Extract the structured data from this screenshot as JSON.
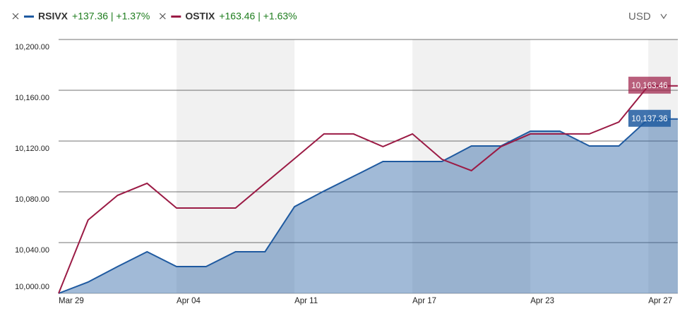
{
  "chart_data": {
    "type": "line",
    "currency": "USD",
    "categories": [
      "Mar 29",
      null,
      null,
      null,
      "Apr 04",
      null,
      null,
      null,
      "Apr 11",
      null,
      null,
      null,
      "Apr 17",
      null,
      null,
      null,
      "Apr 23",
      null,
      null,
      null,
      "Apr 27",
      null
    ],
    "series": [
      {
        "name": "RSIVX",
        "summary": "+137.36 | +1.37%",
        "color": "#1f5aa0",
        "fill": true,
        "values": [
          10000,
          10008.9,
          10021.1,
          10032.8,
          10021.1,
          10021.1,
          10032.8,
          10032.8,
          10068.3,
          10080.6,
          10092.2,
          10103.9,
          10103.9,
          10103.9,
          10116.1,
          10116.1,
          10127.8,
          10127.8,
          10116.1,
          10116.1,
          10137.36,
          10137.36
        ],
        "value_labels": [
          null,
          null,
          null,
          null,
          null,
          null,
          null,
          null,
          null,
          null,
          null,
          null,
          null,
          null,
          null,
          null,
          null,
          null,
          null,
          null,
          null,
          "10,137.36"
        ]
      },
      {
        "name": "OSTIX",
        "summary": "+163.46 | +1.63%",
        "color": "#9b1b45",
        "fill": false,
        "values": [
          10000,
          10057.8,
          10077.2,
          10086.7,
          10067.2,
          10067.2,
          10067.2,
          10086.7,
          10106.1,
          10125.6,
          10125.6,
          10115.6,
          10125.6,
          10105.6,
          10096.7,
          10115.6,
          10125.6,
          10125.6,
          10125.6,
          10135,
          10163.46,
          10163.46
        ],
        "value_labels": [
          null,
          null,
          null,
          null,
          null,
          null,
          null,
          null,
          null,
          null,
          null,
          null,
          null,
          null,
          null,
          null,
          null,
          null,
          null,
          null,
          null,
          "10,163.46"
        ]
      }
    ],
    "ylim": [
      10000,
      10200
    ],
    "yticks": [
      {
        "value": 10000,
        "label": "10,000.00"
      },
      {
        "value": 10040,
        "label": "10,040.00"
      },
      {
        "value": 10080,
        "label": "10,080.00"
      },
      {
        "value": 10120,
        "label": "10,120.00"
      },
      {
        "value": 10160,
        "label": "10,160.00"
      },
      {
        "value": 10200,
        "label": "10,200.00"
      }
    ],
    "grid": true
  }
}
